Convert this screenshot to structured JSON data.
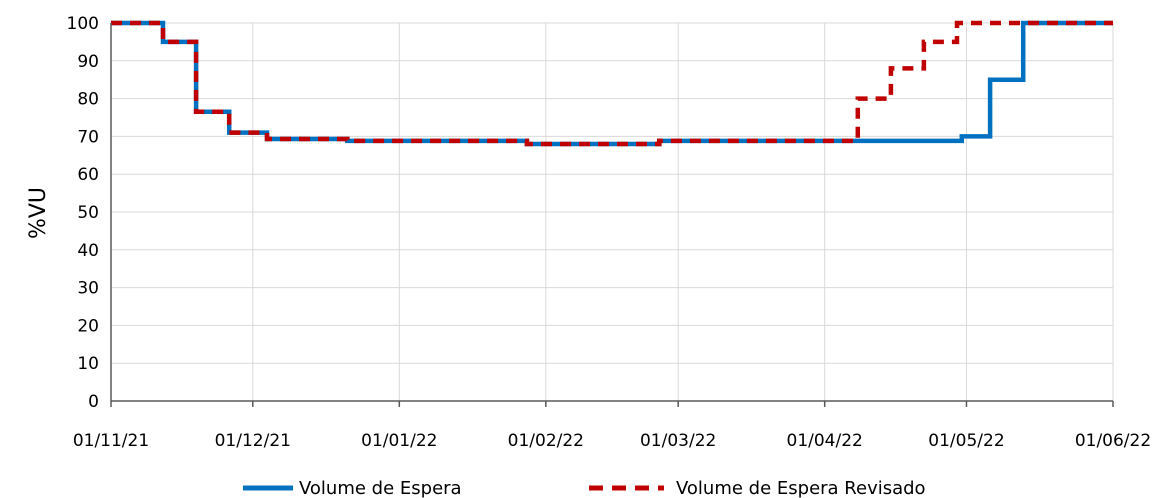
{
  "chart_data": {
    "type": "line",
    "ylabel": "%VU",
    "xlabel": "",
    "ylim": [
      0,
      100
    ],
    "yticks": [
      0,
      10,
      20,
      30,
      40,
      50,
      60,
      70,
      80,
      90,
      100
    ],
    "xlim": [
      "2021-11-01",
      "2022-06-01"
    ],
    "xticks": [
      "01/11/21",
      "01/12/21",
      "01/01/22",
      "01/02/22",
      "01/03/22",
      "01/04/22",
      "01/05/22",
      "01/06/22"
    ],
    "grid": true,
    "legend_position": "bottom",
    "series": [
      {
        "name": "Volume de Espera",
        "color": "#0070C0",
        "style": "solid",
        "x": [
          "2021-11-01",
          "2021-11-12",
          "2021-11-12",
          "2021-11-19",
          "2021-11-19",
          "2021-11-26",
          "2021-11-26",
          "2021-12-04",
          "2021-12-04",
          "2021-12-21",
          "2021-12-21",
          "2022-01-28",
          "2022-01-28",
          "2022-02-25",
          "2022-02-25",
          "2022-04-30",
          "2022-04-30",
          "2022-05-06",
          "2022-05-06",
          "2022-05-13",
          "2022-05-13",
          "2022-06-01"
        ],
        "y": [
          100,
          100,
          95,
          95,
          76.5,
          76.5,
          71,
          71,
          69.3,
          69.3,
          68.8,
          68.8,
          68,
          68,
          68.8,
          68.8,
          70,
          70,
          85,
          85,
          100,
          100
        ]
      },
      {
        "name": "Volume de Espera Revisado",
        "color": "#C00000",
        "style": "dashed",
        "x": [
          "2021-11-01",
          "2021-11-12",
          "2021-11-12",
          "2021-11-19",
          "2021-11-19",
          "2021-11-26",
          "2021-11-26",
          "2021-12-04",
          "2021-12-04",
          "2021-12-21",
          "2021-12-21",
          "2022-01-28",
          "2022-01-28",
          "2022-02-25",
          "2022-02-25",
          "2022-04-08",
          "2022-04-08",
          "2022-04-15",
          "2022-04-15",
          "2022-04-22",
          "2022-04-22",
          "2022-04-29",
          "2022-04-29",
          "2022-06-01"
        ],
        "y": [
          100,
          100,
          95,
          95,
          76.5,
          76.5,
          71,
          71,
          69.3,
          69.3,
          68.8,
          68.8,
          68,
          68,
          68.8,
          68.8,
          80,
          80,
          88,
          88,
          95,
          95,
          100,
          100
        ]
      }
    ]
  }
}
